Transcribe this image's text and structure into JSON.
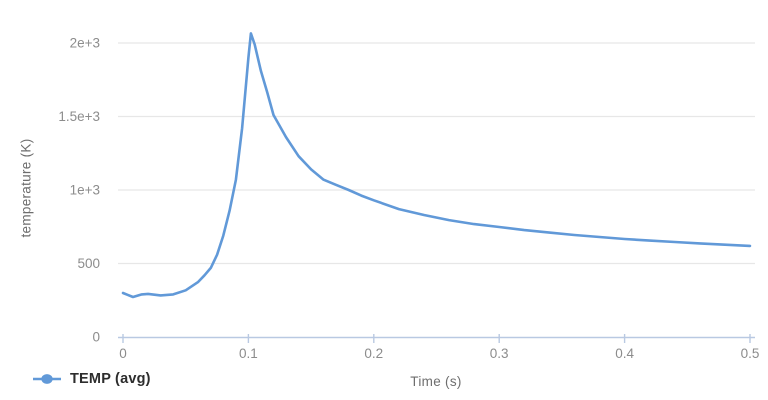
{
  "chart_data": {
    "type": "line",
    "title": "",
    "xlabel": "Time (s)",
    "ylabel": "temperature (K)",
    "xlim": [
      0,
      0.5
    ],
    "ylim": [
      0,
      2100
    ],
    "grid": "horizontal",
    "legend_position": "bottom-left",
    "x_ticks": {
      "values": [
        0,
        0.1,
        0.2,
        0.3,
        0.4,
        0.5
      ],
      "labels": [
        "0",
        "0.1",
        "0.2",
        "0.3",
        "0.4",
        "0.5"
      ]
    },
    "y_ticks": {
      "values": [
        0,
        500,
        1000,
        1500,
        2000
      ],
      "labels": [
        "0",
        "500",
        "1e+3",
        "1.5e+3",
        "2e+3"
      ]
    },
    "series": [
      {
        "name": "TEMP (avg)",
        "color": "#6199d8",
        "x": [
          0,
          0.008,
          0.015,
          0.02,
          0.03,
          0.04,
          0.05,
          0.06,
          0.065,
          0.07,
          0.075,
          0.08,
          0.085,
          0.09,
          0.095,
          0.1,
          0.102,
          0.105,
          0.11,
          0.115,
          0.12,
          0.13,
          0.14,
          0.15,
          0.16,
          0.17,
          0.18,
          0.19,
          0.2,
          0.22,
          0.24,
          0.26,
          0.28,
          0.3,
          0.32,
          0.34,
          0.36,
          0.38,
          0.4,
          0.42,
          0.44,
          0.46,
          0.48,
          0.5
        ],
        "y": [
          299,
          272,
          290,
          293,
          283,
          290,
          318,
          375,
          420,
          470,
          560,
          690,
          860,
          1070,
          1420,
          1900,
          2065,
          1990,
          1810,
          1665,
          1510,
          1360,
          1230,
          1140,
          1070,
          1035,
          1000,
          962,
          930,
          870,
          830,
          795,
          768,
          748,
          727,
          710,
          694,
          680,
          667,
          656,
          646,
          637,
          628,
          620
        ]
      }
    ],
    "peak": {
      "x": 0.102,
      "y": 2065
    }
  },
  "legend": {
    "label": "TEMP (avg)",
    "marker": "line-with-dot-icon"
  },
  "style": {
    "line_color": "#6199d8",
    "axis_color": "#b9c9e2",
    "grid_color": "#e7e7e7",
    "tick_label_color": "#8c8c8c",
    "axis_title_color": "#6e6e6e",
    "legend_text_color": "#2d2d2d",
    "background": "#ffffff"
  }
}
